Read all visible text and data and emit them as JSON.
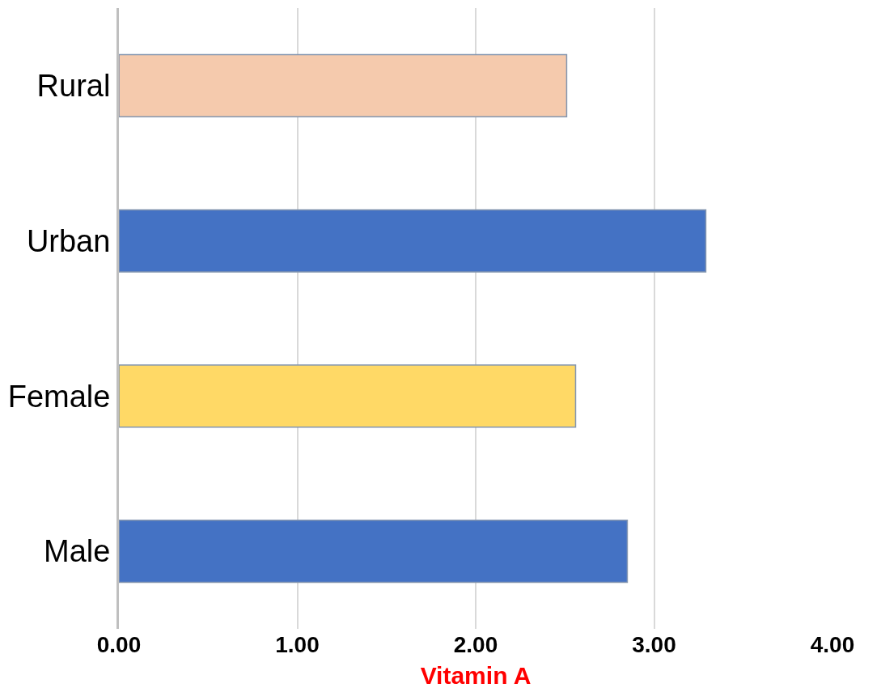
{
  "chart_data": {
    "type": "bar",
    "orientation": "horizontal",
    "categories": [
      "Rural",
      "Urban",
      "Female",
      "Male"
    ],
    "values": [
      2.51,
      3.29,
      2.56,
      2.85
    ],
    "colors": [
      "#f5caad",
      "#4472c4",
      "#ffd966",
      "#4472c4"
    ],
    "xlabel": "Vitamin A",
    "xlim": [
      0,
      4
    ],
    "xticks": [
      {
        "value": 0,
        "label": "0.00"
      },
      {
        "value": 1,
        "label": "1.00"
      },
      {
        "value": 2,
        "label": "2.00"
      },
      {
        "value": 3,
        "label": "3.00"
      },
      {
        "value": 4,
        "label": "4.00"
      }
    ],
    "grid": "x"
  }
}
